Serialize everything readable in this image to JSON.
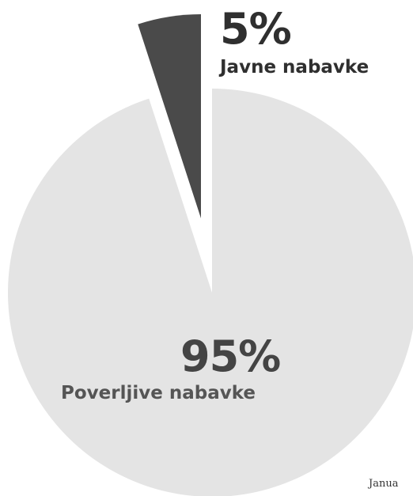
{
  "chart_data": {
    "type": "pie",
    "title": "",
    "slices": [
      {
        "label": "Javne nabavke",
        "value": 5,
        "display": "5%",
        "color": "#4a4a4a"
      },
      {
        "label": "Poverljive nabavke",
        "value": 95,
        "display": "95%",
        "color": "#e4e4e4"
      }
    ],
    "exploded_slice": "Javne nabavke",
    "legend": "none"
  },
  "footer": {
    "source_note": "Janua"
  }
}
